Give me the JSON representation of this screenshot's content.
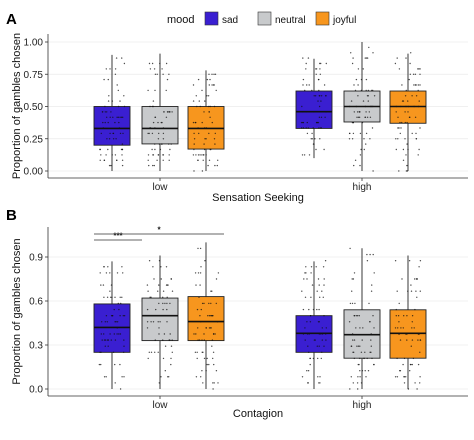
{
  "legend": {
    "title": "mood",
    "entries": [
      {
        "label": "sad",
        "color": "#3a1fd1"
      },
      {
        "label": "neutral",
        "color": "#c8cacc"
      },
      {
        "label": "joyful",
        "color": "#f7961e"
      }
    ]
  },
  "chart_data": [
    {
      "panel": "A",
      "type": "box",
      "xlabel": "Sensation Seeking",
      "ylabel": "Proportion of gambles chosen",
      "categories": [
        "low",
        "high"
      ],
      "ylim": [
        0,
        1.0
      ],
      "yticks": [
        "0.00",
        "0.25",
        "0.50",
        "0.75",
        "1.00"
      ],
      "ytick_values": [
        0,
        0.25,
        0.5,
        0.75,
        1.0
      ],
      "series": [
        {
          "name": "sad",
          "boxes": [
            {
              "q1": 0.2,
              "median": 0.33,
              "q3": 0.5,
              "whislo": 0.0,
              "whishi": 0.9
            },
            {
              "q1": 0.33,
              "median": 0.46,
              "q3": 0.62,
              "whislo": 0.1,
              "whishi": 0.87
            }
          ]
        },
        {
          "name": "neutral",
          "boxes": [
            {
              "q1": 0.21,
              "median": 0.33,
              "q3": 0.5,
              "whislo": 0.0,
              "whishi": 0.91
            },
            {
              "q1": 0.38,
              "median": 0.5,
              "q3": 0.62,
              "whislo": 0.0,
              "whishi": 1.0
            }
          ]
        },
        {
          "name": "joyful",
          "boxes": [
            {
              "q1": 0.17,
              "median": 0.33,
              "q3": 0.5,
              "whislo": 0.0,
              "whishi": 0.78
            },
            {
              "q1": 0.37,
              "median": 0.5,
              "q3": 0.62,
              "whislo": 0.0,
              "whishi": 0.91
            }
          ]
        }
      ],
      "significance": []
    },
    {
      "panel": "B",
      "type": "box",
      "xlabel": "Contagion",
      "ylabel": "Proportion of gambles chosen",
      "categories": [
        "low",
        "high"
      ],
      "ylim": [
        0,
        1.05
      ],
      "yticks": [
        "0.0",
        "0.3",
        "0.6",
        "0.9"
      ],
      "ytick_values": [
        0,
        0.3,
        0.6,
        0.9
      ],
      "series": [
        {
          "name": "sad",
          "boxes": [
            {
              "q1": 0.25,
              "median": 0.42,
              "q3": 0.58,
              "whislo": 0.0,
              "whishi": 0.87
            },
            {
              "q1": 0.25,
              "median": 0.38,
              "q3": 0.5,
              "whislo": 0.0,
              "whishi": 0.87
            }
          ]
        },
        {
          "name": "neutral",
          "boxes": [
            {
              "q1": 0.33,
              "median": 0.5,
              "q3": 0.62,
              "whislo": 0.0,
              "whishi": 0.91
            },
            {
              "q1": 0.21,
              "median": 0.37,
              "q3": 0.54,
              "whislo": 0.0,
              "whishi": 0.96
            }
          ]
        },
        {
          "name": "joyful",
          "boxes": [
            {
              "q1": 0.33,
              "median": 0.46,
              "q3": 0.63,
              "whislo": 0.0,
              "whishi": 1.0
            },
            {
              "q1": 0.21,
              "median": 0.38,
              "q3": 0.54,
              "whislo": 0.0,
              "whishi": 0.91
            }
          ]
        }
      ],
      "significance": [
        {
          "from": "sad",
          "to": "neutral",
          "category": "low",
          "label": "***"
        },
        {
          "from": "sad",
          "to": "joyful",
          "category": "low",
          "label": "*"
        }
      ]
    }
  ]
}
